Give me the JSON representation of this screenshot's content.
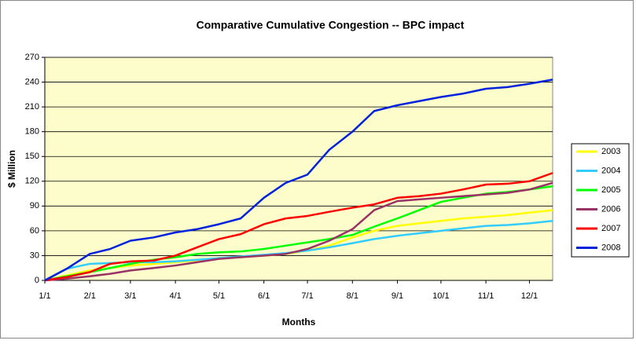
{
  "chart_data": {
    "type": "line",
    "title": "Comparative Cumulative Congestion -- BPC impact",
    "xlabel": "Months",
    "ylabel": "$ Million",
    "x": [
      0,
      15,
      31,
      45,
      59,
      75,
      90,
      105,
      120,
      135,
      151,
      166,
      181,
      196,
      212,
      227,
      243,
      258,
      273,
      288,
      304,
      319,
      334,
      350
    ],
    "series": [
      {
        "name": "2003",
        "color": "#ffff00",
        "values": [
          0,
          6,
          12,
          15,
          18,
          20,
          22,
          24,
          27,
          28,
          30,
          32,
          36,
          42,
          52,
          60,
          66,
          69,
          72,
          75,
          77,
          79,
          82,
          85
        ]
      },
      {
        "name": "2004",
        "color": "#33ccff",
        "values": [
          0,
          14,
          20,
          21,
          22,
          22,
          23,
          25,
          27,
          29,
          31,
          33,
          36,
          40,
          45,
          50,
          54,
          57,
          60,
          63,
          66,
          67,
          69,
          72
        ]
      },
      {
        "name": "2005",
        "color": "#00ff00",
        "values": [
          0,
          5,
          10,
          15,
          20,
          25,
          28,
          32,
          34,
          35,
          38,
          42,
          46,
          50,
          55,
          65,
          75,
          85,
          95,
          100,
          105,
          107,
          110,
          114
        ]
      },
      {
        "name": "2006",
        "color": "#993366",
        "values": [
          0,
          2,
          5,
          8,
          12,
          15,
          18,
          22,
          26,
          28,
          30,
          32,
          38,
          48,
          62,
          85,
          96,
          98,
          100,
          102,
          104,
          106,
          110,
          118
        ]
      },
      {
        "name": "2007",
        "color": "#ff0000",
        "values": [
          0,
          4,
          10,
          20,
          23,
          24,
          30,
          40,
          50,
          56,
          68,
          75,
          78,
          83,
          88,
          92,
          100,
          102,
          105,
          110,
          116,
          117,
          120,
          130
        ]
      },
      {
        "name": "2008",
        "color": "#0022dd",
        "values": [
          0,
          14,
          32,
          38,
          48,
          52,
          58,
          62,
          68,
          75,
          100,
          118,
          128,
          158,
          180,
          205,
          212,
          217,
          222,
          226,
          232,
          234,
          238,
          243
        ]
      }
    ],
    "xlim": [
      0,
      350
    ],
    "xticks": [
      {
        "value": 0,
        "label": "1/1"
      },
      {
        "value": 31,
        "label": "2/1"
      },
      {
        "value": 59,
        "label": "3/1"
      },
      {
        "value": 90,
        "label": "4/1"
      },
      {
        "value": 120,
        "label": "5/1"
      },
      {
        "value": 151,
        "label": "6/1"
      },
      {
        "value": 181,
        "label": "7/1"
      },
      {
        "value": 212,
        "label": "8/1"
      },
      {
        "value": 243,
        "label": "9/1"
      },
      {
        "value": 273,
        "label": "10/1"
      },
      {
        "value": 304,
        "label": "11/1"
      },
      {
        "value": 334,
        "label": "12/1"
      }
    ],
    "ylim": [
      0,
      270
    ],
    "yticks": [
      0,
      30,
      60,
      90,
      120,
      150,
      180,
      210,
      240,
      270
    ],
    "grid": true,
    "legend": "right"
  }
}
